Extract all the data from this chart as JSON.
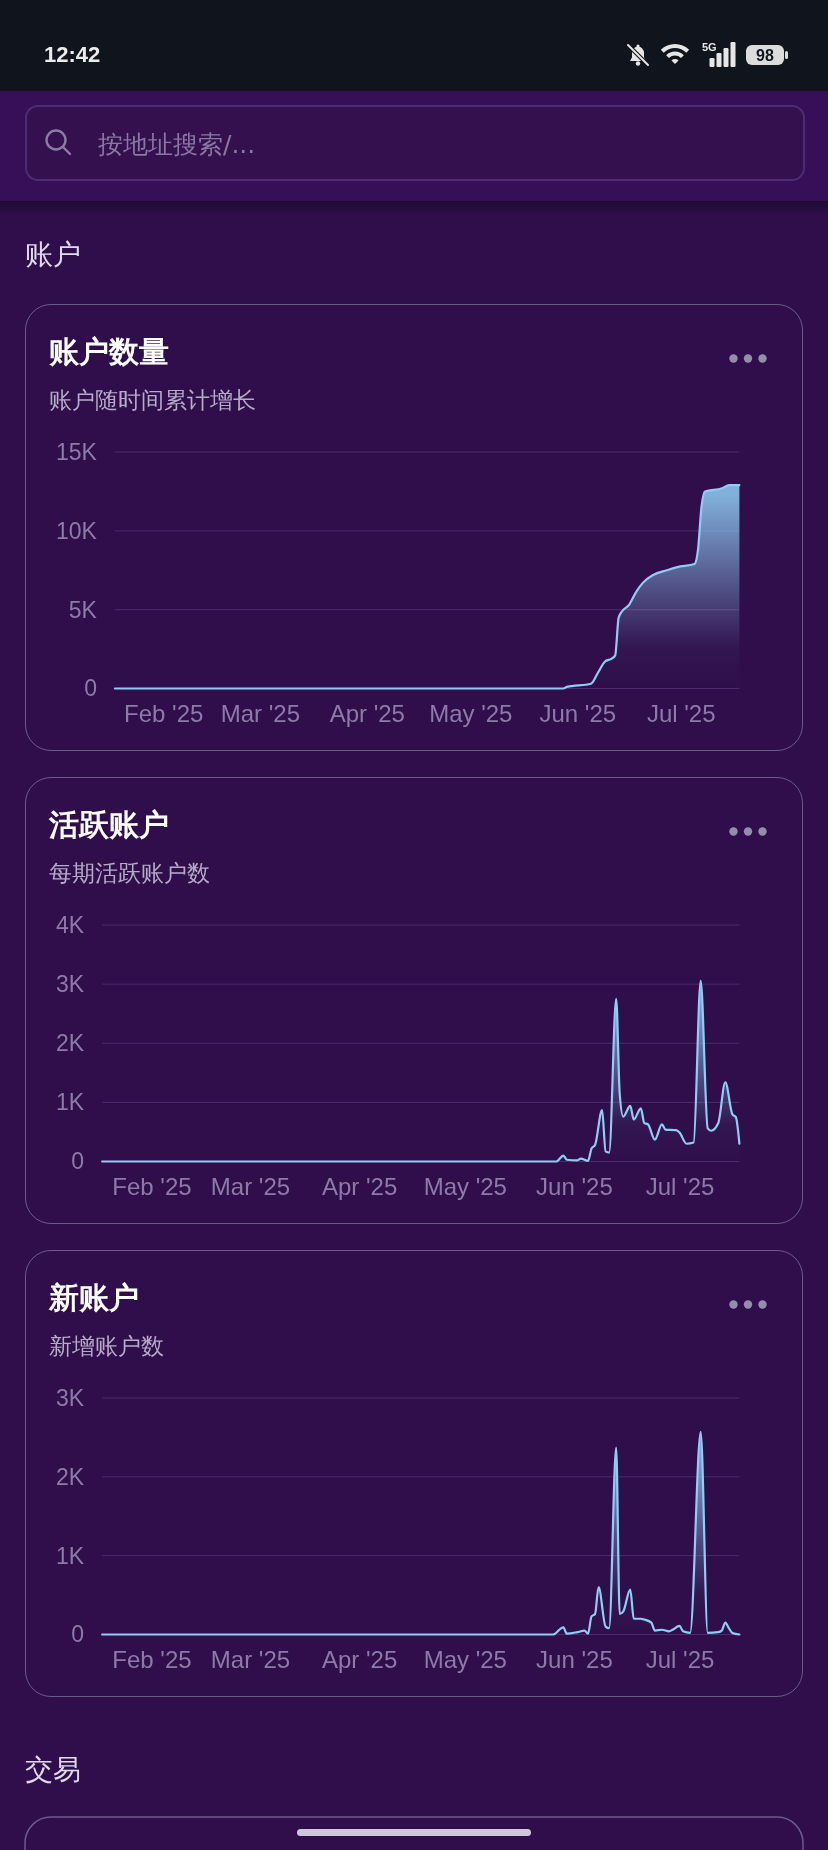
{
  "chart_data": [
    {
      "type": "other",
      "title": "账户",
      "annotations": [
        "12:42",
        "5G",
        "98",
        "按地址搜索/..."
      ]
    },
    {
      "type": "area",
      "title": "账户数量",
      "subtitle": "账户随时间累计增长",
      "color": "#90cdf4",
      "x": [
        "2025-01-18",
        "2025-05-28",
        "2025-05-29",
        "2025-06-05",
        "2025-06-07",
        "2025-06-09",
        "2025-06-11",
        "2025-06-12",
        "2025-06-13",
        "2025-06-14",
        "2025-06-16",
        "2025-06-18",
        "2025-06-20",
        "2025-06-23",
        "2025-06-27",
        "2025-06-30",
        "2025-07-05",
        "2025-07-06",
        "2025-07-07",
        "2025-07-08",
        "2025-07-13",
        "2025-07-15",
        "2025-07-18"
      ],
      "values": [
        0,
        0,
        100,
        300,
        1000,
        1700,
        1900,
        2100,
        4500,
        4900,
        5300,
        6100,
        6700,
        7200,
        7500,
        7700,
        7900,
        8800,
        11500,
        12500,
        12700,
        12900,
        12900
      ],
      "xlim": [
        "2025-01-18",
        "2025-07-18"
      ],
      "xticks": [
        {
          "value": "2025-02-01",
          "label": "Feb '25"
        },
        {
          "value": "2025-03-01",
          "label": "Mar '25"
        },
        {
          "value": "2025-04-01",
          "label": "Apr '25"
        },
        {
          "value": "2025-05-01",
          "label": "May '25"
        },
        {
          "value": "2025-06-01",
          "label": "Jun '25"
        },
        {
          "value": "2025-07-01",
          "label": "Jul '25"
        }
      ],
      "ylim": [
        0,
        15000
      ],
      "yticks": [
        {
          "value": 0,
          "label": "0"
        },
        {
          "value": 5000,
          "label": "5K"
        },
        {
          "value": 10000,
          "label": "10K"
        },
        {
          "value": 15000,
          "label": "15K"
        }
      ],
      "grid": "y"
    },
    {
      "type": "area",
      "title": "活跃账户",
      "subtitle": "每期活跃账户数",
      "color": "#90cdf4",
      "x": [
        "2025-01-18",
        "2025-05-27",
        "2025-05-29",
        "2025-05-30",
        "2025-06-02",
        "2025-06-03",
        "2025-06-05",
        "2025-06-06",
        "2025-06-07",
        "2025-06-09",
        "2025-06-10",
        "2025-06-11",
        "2025-06-13",
        "2025-06-14",
        "2025-06-15",
        "2025-06-17",
        "2025-06-18",
        "2025-06-20",
        "2025-06-21",
        "2025-06-22",
        "2025-06-24",
        "2025-06-26",
        "2025-06-27",
        "2025-06-30",
        "2025-07-01",
        "2025-07-03",
        "2025-07-05",
        "2025-07-07",
        "2025-07-09",
        "2025-07-10",
        "2025-07-12",
        "2025-07-14",
        "2025-07-16",
        "2025-07-17",
        "2025-07-18"
      ],
      "values": [
        0,
        0,
        100,
        30,
        20,
        50,
        10,
        220,
        280,
        870,
        170,
        150,
        2750,
        1150,
        760,
        940,
        710,
        900,
        650,
        630,
        370,
        630,
        540,
        530,
        490,
        300,
        320,
        3060,
        560,
        520,
        650,
        1340,
        800,
        750,
        300
      ],
      "xlim": [
        "2025-01-18",
        "2025-07-18"
      ],
      "xticks": [
        {
          "value": "2025-02-01",
          "label": "Feb '25"
        },
        {
          "value": "2025-03-01",
          "label": "Mar '25"
        },
        {
          "value": "2025-04-01",
          "label": "Apr '25"
        },
        {
          "value": "2025-05-01",
          "label": "May '25"
        },
        {
          "value": "2025-06-01",
          "label": "Jun '25"
        },
        {
          "value": "2025-07-01",
          "label": "Jul '25"
        }
      ],
      "ylim": [
        0,
        4000
      ],
      "yticks": [
        {
          "value": 0,
          "label": "0"
        },
        {
          "value": 1000,
          "label": "1K"
        },
        {
          "value": 2000,
          "label": "2K"
        },
        {
          "value": 3000,
          "label": "3K"
        },
        {
          "value": 4000,
          "label": "4K"
        }
      ],
      "grid": "y"
    },
    {
      "type": "area",
      "title": "新账户",
      "subtitle": "新增账户数",
      "color": "#90cdf4",
      "x": [
        "2025-01-18",
        "2025-05-26",
        "2025-05-29",
        "2025-05-30",
        "2025-06-02",
        "2025-06-04",
        "2025-06-05",
        "2025-06-06",
        "2025-06-07",
        "2025-06-08",
        "2025-06-10",
        "2025-06-11",
        "2025-06-13",
        "2025-06-14",
        "2025-06-15",
        "2025-06-17",
        "2025-06-18",
        "2025-06-20",
        "2025-06-21",
        "2025-06-23",
        "2025-06-24",
        "2025-06-26",
        "2025-06-28",
        "2025-06-29",
        "2025-07-01",
        "2025-07-02",
        "2025-07-04",
        "2025-07-07",
        "2025-07-09",
        "2025-07-12",
        "2025-07-13",
        "2025-07-14",
        "2025-07-15",
        "2025-07-16",
        "2025-07-18"
      ],
      "values": [
        0,
        0,
        90,
        10,
        30,
        50,
        10,
        230,
        260,
        600,
        100,
        80,
        2370,
        260,
        290,
        570,
        200,
        200,
        190,
        150,
        50,
        60,
        40,
        60,
        110,
        40,
        20,
        2570,
        20,
        30,
        50,
        150,
        80,
        20,
        0
      ],
      "xlim": [
        "2025-01-18",
        "2025-07-18"
      ],
      "xticks": [
        {
          "value": "2025-02-01",
          "label": "Feb '25"
        },
        {
          "value": "2025-03-01",
          "label": "Mar '25"
        },
        {
          "value": "2025-04-01",
          "label": "Apr '25"
        },
        {
          "value": "2025-05-01",
          "label": "May '25"
        },
        {
          "value": "2025-06-01",
          "label": "Jun '25"
        },
        {
          "value": "2025-07-01",
          "label": "Jul '25"
        }
      ],
      "ylim": [
        0,
        3000
      ],
      "yticks": [
        {
          "value": 0,
          "label": "0"
        },
        {
          "value": 1000,
          "label": "1K"
        },
        {
          "value": 2000,
          "label": "2K"
        },
        {
          "value": 3000,
          "label": "3K"
        }
      ],
      "grid": "y"
    },
    {
      "type": "other",
      "title": "交易"
    }
  ]
}
